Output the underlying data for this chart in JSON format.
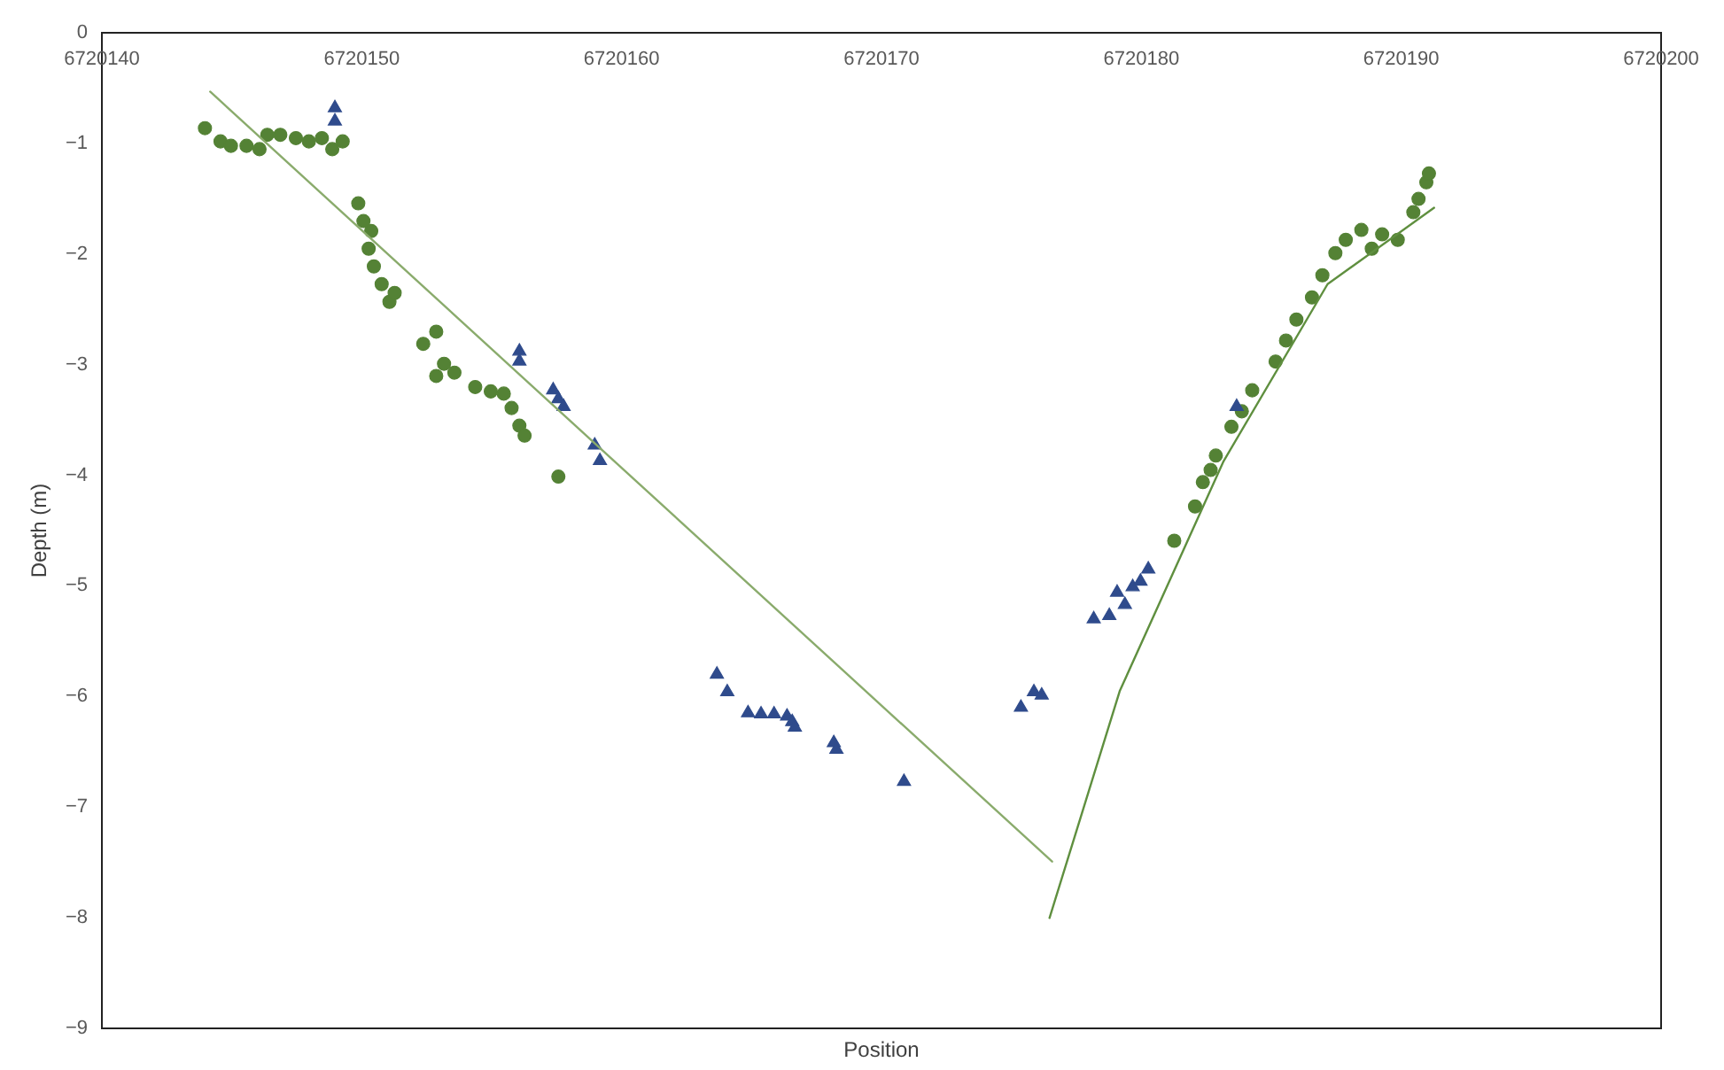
{
  "chart_data": {
    "type": "scatter",
    "xlabel": "Position",
    "ylabel": "Depth (m)",
    "xlim": [
      6720140,
      6720200
    ],
    "xticks": [
      6720140,
      6720150,
      6720160,
      6720170,
      6720180,
      6720190,
      6720200
    ],
    "ylim": [
      -9,
      0
    ],
    "yticks": [
      0,
      -1,
      -2,
      -3,
      -4,
      -5,
      -6,
      -7,
      -8,
      -9
    ],
    "grid": false,
    "series": [
      {
        "marker": "circle",
        "color": "#548235",
        "x": [
          6720144.0,
          6720144.6,
          6720145.0,
          6720145.6,
          6720146.1,
          6720146.4,
          6720146.9,
          6720147.5,
          6720148.0,
          6720148.5,
          6720148.9,
          6720149.3,
          6720149.9,
          6720150.1,
          6720150.4,
          6720150.3,
          6720150.5,
          6720150.8,
          6720151.1,
          6720151.3,
          6720152.4,
          6720152.9,
          6720152.9,
          6720153.2,
          6720153.6,
          6720154.4,
          6720155.0,
          6720155.5,
          6720155.8,
          6720156.1,
          6720156.3,
          6720157.6,
          6720181.3,
          6720182.1,
          6720182.4,
          6720182.7,
          6720182.9,
          6720183.5,
          6720183.9,
          6720184.3,
          6720185.2,
          6720185.6,
          6720186.0,
          6720186.6,
          6720187.0,
          6720187.5,
          6720187.9,
          6720188.5,
          6720188.9,
          6720189.3,
          6720189.9,
          6720190.5,
          6720190.7,
          6720191.0,
          6720191.1
        ],
        "values": [
          -0.87,
          -0.99,
          -1.03,
          -1.03,
          -1.06,
          -0.93,
          -0.93,
          -0.96,
          -0.99,
          -0.96,
          -1.06,
          -0.99,
          -1.55,
          -1.71,
          -1.8,
          -1.96,
          -2.12,
          -2.28,
          -2.44,
          -2.36,
          -2.82,
          -2.71,
          -3.11,
          -3.0,
          -3.08,
          -3.21,
          -3.25,
          -3.27,
          -3.4,
          -3.56,
          -3.65,
          -4.02,
          -4.6,
          -4.29,
          -4.07,
          -3.96,
          -3.83,
          -3.57,
          -3.43,
          -3.24,
          -2.98,
          -2.79,
          -2.6,
          -2.4,
          -2.2,
          -2.0,
          -1.88,
          -1.79,
          -1.96,
          -1.83,
          -1.88,
          -1.63,
          -1.51,
          -1.36,
          -1.28
        ]
      },
      {
        "marker": "triangle",
        "color": "#2f4b8c",
        "x": [
          6720149.0,
          6720149.0,
          6720156.1,
          6720156.1,
          6720157.4,
          6720157.6,
          6720157.8,
          6720159.0,
          6720159.2,
          6720163.7,
          6720164.1,
          6720164.9,
          6720165.4,
          6720165.9,
          6720166.4,
          6720166.6,
          6720166.7,
          6720168.2,
          6720168.3,
          6720170.9,
          6720175.4,
          6720175.9,
          6720176.2,
          6720178.2,
          6720178.8,
          6720179.1,
          6720179.4,
          6720179.7,
          6720180.0,
          6720180.3,
          6720183.7
        ],
        "values": [
          -0.67,
          -0.79,
          -2.87,
          -2.96,
          -3.22,
          -3.3,
          -3.37,
          -3.72,
          -3.86,
          -5.79,
          -5.95,
          -6.14,
          -6.15,
          -6.15,
          -6.17,
          -6.22,
          -6.27,
          -6.41,
          -6.47,
          -6.76,
          -6.09,
          -5.95,
          -5.98,
          -5.29,
          -5.26,
          -5.05,
          -5.16,
          -5.0,
          -4.95,
          -4.84,
          -3.37
        ]
      },
      {
        "type": "line",
        "marker": "none",
        "color": "#8aab6c",
        "x": [
          6720144.2,
          6720176.6
        ],
        "values": [
          -0.54,
          -7.5
        ]
      },
      {
        "type": "line",
        "marker": "none",
        "color": "#5f8f3f",
        "x": [
          6720176.5,
          6720179.2,
          6720183.2,
          6720187.2,
          6720191.3
        ],
        "values": [
          -8.01,
          -5.96,
          -3.88,
          -2.28,
          -1.59
        ]
      }
    ]
  }
}
